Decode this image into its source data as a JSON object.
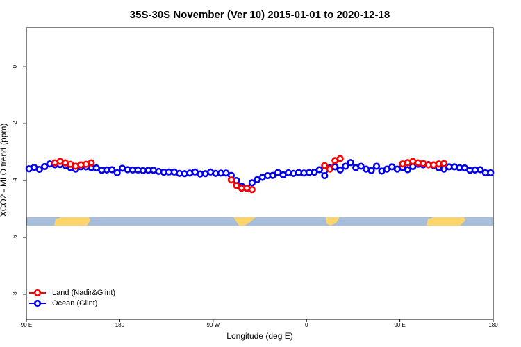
{
  "chart_data": {
    "type": "line",
    "title": "35S-30S November (Ver 10)   2015-01-01 to 2020-12-18",
    "xlabel": "Longitude (deg E)",
    "ylabel": "XCO2 - MLO trend (ppm)",
    "xlim": [
      90,
      540
    ],
    "ylim": [
      -8.88,
      1.37
    ],
    "xticks": [
      {
        "value": 90,
        "label": "90 E"
      },
      180,
      {
        "value": 270,
        "label": "90 W"
      },
      {
        "value": 360,
        "label": "0"
      },
      {
        "value": 450,
        "label": "90 E"
      },
      {
        "value": 540,
        "label": "180"
      }
    ],
    "yticks": [
      0,
      -2,
      -4,
      -6,
      -8
    ],
    "legend": "bottom-left",
    "series": [
      {
        "name": "Land (Nadir&Glint)",
        "color": "#ff0000",
        "x": [
          117.5,
          122.5,
          127.5,
          132.5,
          137.5,
          142.5,
          147.5,
          152.5,
          200,
          287.5,
          292.5,
          297.5,
          302.5,
          307.5,
          340,
          377.5,
          382.5,
          387.5,
          392.5,
          420,
          452.5,
          457.5,
          462.5,
          467.5,
          472.5,
          477.5,
          482.5,
          487.5,
          492.5
        ],
        "values": [
          -3.38,
          -3.33,
          -3.38,
          -3.43,
          -3.5,
          -3.45,
          -3.43,
          -3.38,
          null,
          -3.98,
          -4.18,
          -4.27,
          -4.27,
          -4.32,
          null,
          -3.48,
          -3.6,
          -3.3,
          -3.23,
          null,
          -3.42,
          -3.37,
          -3.33,
          -3.38,
          -3.4,
          -3.45,
          -3.45,
          -3.42,
          -3.4
        ]
      },
      {
        "name": "Ocean (Glint)",
        "color": "#0000ee",
        "x": [
          92.5,
          97.5,
          102.5,
          107.5,
          112.5,
          117.5,
          122.5,
          127.5,
          132.5,
          137.5,
          142.5,
          147.5,
          152.5,
          157.5,
          162.5,
          167.5,
          172.5,
          177.5,
          182.5,
          187.5,
          192.5,
          197.5,
          202.5,
          207.5,
          212.5,
          217.5,
          222.5,
          227.5,
          232.5,
          237.5,
          242.5,
          247.5,
          252.5,
          257.5,
          262.5,
          267.5,
          272.5,
          277.5,
          282.5,
          287.5,
          292.5,
          297.5,
          302.5,
          307.5,
          312.5,
          317.5,
          322.5,
          327.5,
          332.5,
          337.5,
          342.5,
          347.5,
          352.5,
          357.5,
          362.5,
          367.5,
          372.5,
          377.5,
          382.5,
          387.5,
          392.5,
          397.5,
          402.5,
          407.5,
          412.5,
          417.5,
          422.5,
          427.5,
          432.5,
          437.5,
          442.5,
          447.5,
          452.5,
          457.5,
          462.5,
          467.5,
          472.5,
          477.5,
          482.5,
          487.5,
          492.5,
          497.5,
          502.5,
          507.5,
          512.5,
          517.5,
          522.5,
          527.5,
          532.5,
          537.5
        ],
        "values": [
          -3.59,
          -3.54,
          -3.61,
          -3.51,
          -3.42,
          -3.45,
          -3.44,
          -3.47,
          -3.55,
          -3.6,
          -3.52,
          -3.52,
          -3.55,
          -3.56,
          -3.64,
          -3.63,
          -3.62,
          -3.73,
          -3.57,
          -3.62,
          -3.63,
          -3.63,
          -3.65,
          -3.64,
          -3.64,
          -3.68,
          -3.71,
          -3.7,
          -3.7,
          -3.75,
          -3.76,
          -3.74,
          -3.7,
          -3.77,
          -3.76,
          -3.7,
          -3.75,
          -3.74,
          -3.74,
          -3.82,
          -4.0,
          -4.2,
          -4.27,
          -4.08,
          -3.97,
          -3.89,
          -3.83,
          -3.82,
          -3.72,
          -3.8,
          -3.73,
          -3.75,
          -3.72,
          -3.74,
          -3.72,
          -3.71,
          -3.62,
          -3.83,
          -3.56,
          -3.52,
          -3.63,
          -3.5,
          -3.37,
          -3.55,
          -3.5,
          -3.6,
          -3.65,
          -3.5,
          -3.67,
          -3.6,
          -3.52,
          -3.6,
          -3.54,
          -3.62,
          -3.51,
          -3.43,
          -3.45,
          -3.44,
          -3.47,
          -3.55,
          -3.6,
          -3.52,
          -3.52,
          -3.55,
          -3.56,
          -3.64,
          -3.63,
          -3.62,
          -3.73,
          -3.73
        ]
      }
    ]
  }
}
